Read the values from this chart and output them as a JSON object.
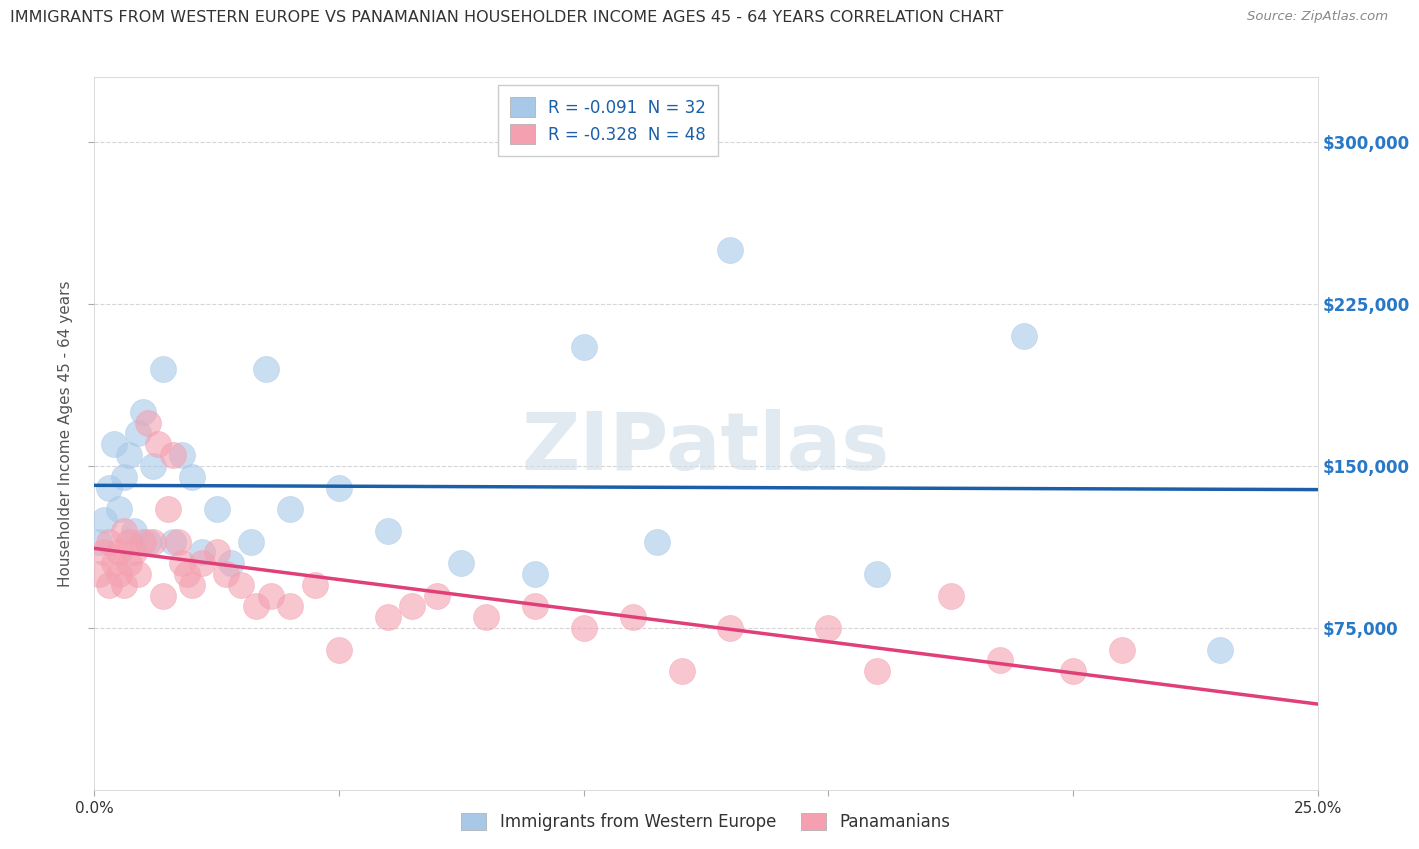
{
  "title": "IMMIGRANTS FROM WESTERN EUROPE VS PANAMANIAN HOUSEHOLDER INCOME AGES 45 - 64 YEARS CORRELATION CHART",
  "source": "Source: ZipAtlas.com",
  "ylabel": "Householder Income Ages 45 - 64 years",
  "xlim": [
    0.0,
    0.25
  ],
  "ylim": [
    0,
    330000
  ],
  "ytick_positions": [
    75000,
    150000,
    225000,
    300000
  ],
  "ytick_labels": [
    "$75,000",
    "$150,000",
    "$225,000",
    "$300,000"
  ],
  "bg_color": "#ffffff",
  "plot_bg_color": "#ffffff",
  "grid_color": "#cccccc",
  "blue_R": -0.091,
  "blue_N": 32,
  "pink_R": -0.328,
  "pink_N": 48,
  "blue_color": "#a8c8e8",
  "pink_color": "#f4a0b0",
  "blue_line_color": "#1a5fa8",
  "pink_line_color": "#e0407a",
  "blue_x": [
    0.001,
    0.002,
    0.003,
    0.004,
    0.005,
    0.006,
    0.007,
    0.008,
    0.009,
    0.01,
    0.011,
    0.012,
    0.014,
    0.016,
    0.018,
    0.02,
    0.022,
    0.025,
    0.028,
    0.032,
    0.035,
    0.04,
    0.05,
    0.06,
    0.075,
    0.09,
    0.1,
    0.115,
    0.13,
    0.16,
    0.19,
    0.23
  ],
  "blue_y": [
    115000,
    125000,
    140000,
    160000,
    130000,
    145000,
    155000,
    120000,
    165000,
    175000,
    115000,
    150000,
    195000,
    115000,
    155000,
    145000,
    110000,
    130000,
    105000,
    115000,
    195000,
    130000,
    140000,
    120000,
    105000,
    100000,
    205000,
    115000,
    250000,
    100000,
    210000,
    65000
  ],
  "pink_x": [
    0.001,
    0.002,
    0.003,
    0.003,
    0.004,
    0.005,
    0.005,
    0.006,
    0.006,
    0.007,
    0.007,
    0.008,
    0.009,
    0.01,
    0.011,
    0.012,
    0.013,
    0.014,
    0.015,
    0.016,
    0.017,
    0.018,
    0.019,
    0.02,
    0.022,
    0.025,
    0.027,
    0.03,
    0.033,
    0.036,
    0.04,
    0.045,
    0.05,
    0.06,
    0.065,
    0.07,
    0.08,
    0.09,
    0.1,
    0.11,
    0.12,
    0.13,
    0.15,
    0.16,
    0.175,
    0.185,
    0.2,
    0.21
  ],
  "pink_y": [
    100000,
    110000,
    95000,
    115000,
    105000,
    110000,
    100000,
    120000,
    95000,
    105000,
    115000,
    110000,
    100000,
    115000,
    170000,
    115000,
    160000,
    90000,
    130000,
    155000,
    115000,
    105000,
    100000,
    95000,
    105000,
    110000,
    100000,
    95000,
    85000,
    90000,
    85000,
    95000,
    65000,
    80000,
    85000,
    90000,
    80000,
    85000,
    75000,
    80000,
    55000,
    75000,
    75000,
    55000,
    90000,
    60000,
    55000,
    65000
  ]
}
